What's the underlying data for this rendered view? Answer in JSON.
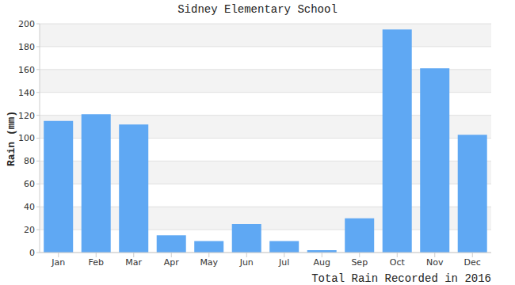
{
  "chart_data": {
    "type": "bar",
    "title": "Sidney Elementary School",
    "ylabel": "Rain (mm)",
    "annotations": [
      "Total Rain Recorded in 2016"
    ],
    "categories": [
      "Jan",
      "Feb",
      "Mar",
      "Apr",
      "May",
      "Jun",
      "Jul",
      "Aug",
      "Sep",
      "Oct",
      "Nov",
      "Dec"
    ],
    "values": [
      115,
      121,
      112,
      15,
      10,
      25,
      10,
      2,
      30,
      195,
      161,
      103
    ],
    "color": "#5fa8f3",
    "ylim": [
      0,
      200
    ],
    "yticks": [
      0,
      20,
      40,
      60,
      80,
      100,
      120,
      140,
      160,
      180,
      200
    ],
    "grid": true
  }
}
